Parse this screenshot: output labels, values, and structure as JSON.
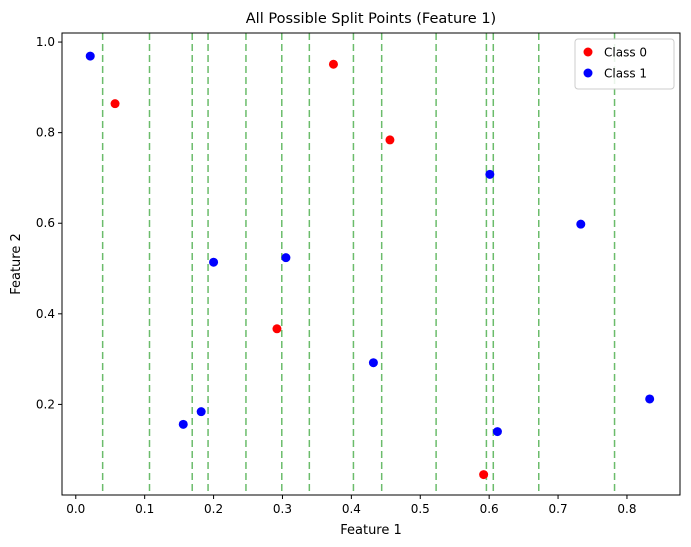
{
  "chart_data": {
    "type": "scatter",
    "title": "All Possible Split Points (Feature 1)",
    "xlabel": "Feature 1",
    "ylabel": "Feature 2",
    "xlim": [
      -0.02,
      0.877
    ],
    "ylim": [
      0.0,
      1.02
    ],
    "xticks": [
      0.0,
      0.1,
      0.2,
      0.3,
      0.4,
      0.5,
      0.6,
      0.7,
      0.8
    ],
    "yticks": [
      0.2,
      0.4,
      0.6,
      0.8,
      1.0
    ],
    "grid": false,
    "legend_position": "top-right",
    "split_lines": {
      "color": "#2ca02c",
      "style": "dashed",
      "x": [
        0.039,
        0.107,
        0.169,
        0.192,
        0.247,
        0.299,
        0.339,
        0.403,
        0.444,
        0.523,
        0.596,
        0.606,
        0.672,
        0.782
      ]
    },
    "series": [
      {
        "name": "Class 0",
        "color": "#ff0000",
        "points": [
          {
            "x": 0.057,
            "y": 0.864
          },
          {
            "x": 0.292,
            "y": 0.367
          },
          {
            "x": 0.374,
            "y": 0.951
          },
          {
            "x": 0.456,
            "y": 0.784
          },
          {
            "x": 0.592,
            "y": 0.045
          }
        ]
      },
      {
        "name": "Class 1",
        "color": "#0000ff",
        "points": [
          {
            "x": 0.021,
            "y": 0.969
          },
          {
            "x": 0.156,
            "y": 0.156
          },
          {
            "x": 0.182,
            "y": 0.184
          },
          {
            "x": 0.2,
            "y": 0.514
          },
          {
            "x": 0.305,
            "y": 0.524
          },
          {
            "x": 0.432,
            "y": 0.292
          },
          {
            "x": 0.601,
            "y": 0.708
          },
          {
            "x": 0.612,
            "y": 0.14
          },
          {
            "x": 0.733,
            "y": 0.598
          },
          {
            "x": 0.833,
            "y": 0.212
          }
        ]
      }
    ]
  }
}
